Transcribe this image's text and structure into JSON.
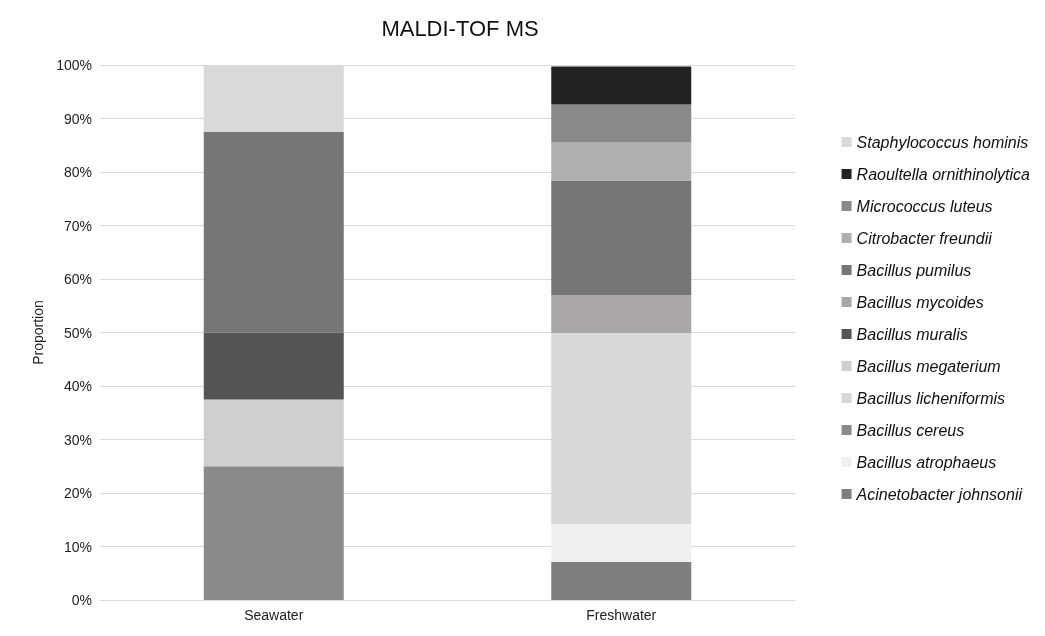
{
  "chart_data": {
    "type": "bar",
    "title": "MALDI-TOF MS",
    "ylabel": "Proportion",
    "categories": [
      "Seawater",
      "Freshwater"
    ],
    "stacked": true,
    "legend": "right",
    "grid": "y",
    "ylim": [
      0,
      100
    ],
    "yticks": [
      {
        "value": 0,
        "label": "0%"
      },
      {
        "value": 10,
        "label": "10%"
      },
      {
        "value": 20,
        "label": "20%"
      },
      {
        "value": 30,
        "label": "30%"
      },
      {
        "value": 40,
        "label": "40%"
      },
      {
        "value": 50,
        "label": "50%"
      },
      {
        "value": 60,
        "label": "60%"
      },
      {
        "value": 70,
        "label": "70%"
      },
      {
        "value": 80,
        "label": "80%"
      },
      {
        "value": 90,
        "label": "90%"
      },
      {
        "value": 100,
        "label": "100%"
      }
    ],
    "series": [
      {
        "name": "Acinetobacter johnsonii",
        "color": "#7f7f7f",
        "values": [
          null,
          7.1
        ]
      },
      {
        "name": "Bacillus atrophaeus",
        "color": "#f0f0f0",
        "values": [
          null,
          7.1
        ]
      },
      {
        "name": "Bacillus cereus",
        "color": "#8a8a8a",
        "values": [
          25,
          null
        ]
      },
      {
        "name": "Bacillus licheniformis",
        "color": "#d8d8d8",
        "values": [
          null,
          35.7
        ]
      },
      {
        "name": "Bacillus megaterium",
        "color": "#cfcfcf",
        "values": [
          12.5,
          null
        ]
      },
      {
        "name": "Bacillus muralis",
        "color": "#555555",
        "values": [
          12.5,
          null
        ]
      },
      {
        "name": "Bacillus mycoides",
        "color": "#aaa6a6",
        "values": [
          null,
          7.1
        ]
      },
      {
        "name": "Bacillus pumilus",
        "color": "#767676",
        "values": [
          37.5,
          21.4
        ]
      },
      {
        "name": "Citrobacter freundii",
        "color": "#b0b0b0",
        "values": [
          null,
          7.1
        ]
      },
      {
        "name": "Micrococcus luteus",
        "color": "#898989",
        "values": [
          null,
          7.1
        ]
      },
      {
        "name": "Raoultella ornithinolytica",
        "color": "#222222",
        "values": [
          null,
          7.1
        ]
      },
      {
        "name": "Staphylococcus hominis",
        "color": "#d9d9d9",
        "values": [
          12.5,
          null
        ]
      }
    ]
  }
}
